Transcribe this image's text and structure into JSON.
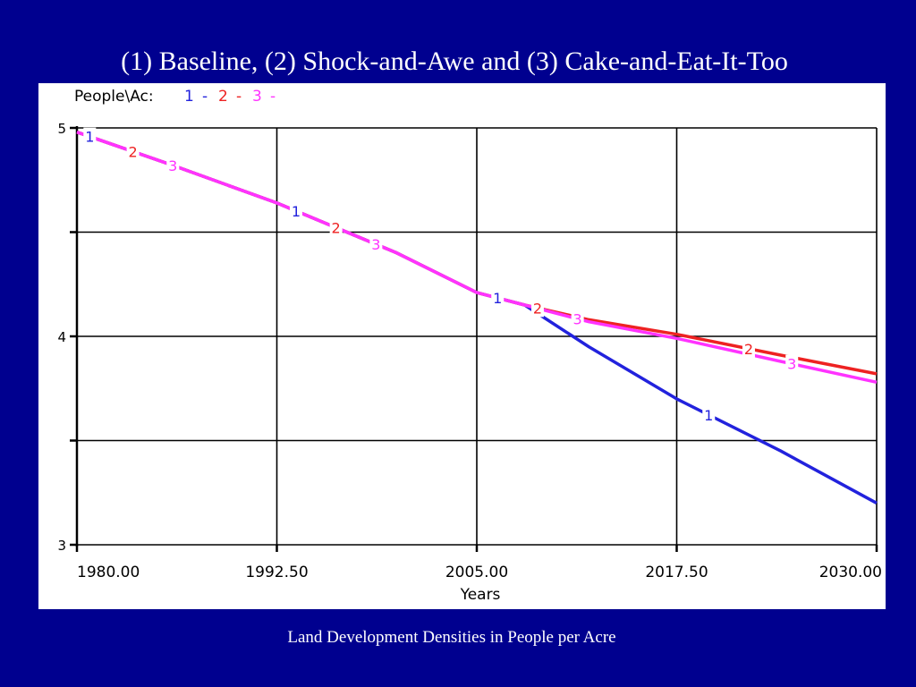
{
  "slide": {
    "title": "(1) Baseline, (2) Shock-and-Awe and (3) Cake-and-Eat-It-Too",
    "caption": "Land Development Densities in People per Acre"
  },
  "chart_data": {
    "type": "line",
    "ylabel": "People\\Ac:",
    "xlabel": "Years",
    "xlim": [
      1980,
      2030
    ],
    "ylim": [
      3,
      5
    ],
    "x_ticks": [
      "1980.00",
      "1992.50",
      "2005.00",
      "2017.50",
      "2030.00"
    ],
    "y_ticks": [
      "5",
      "4",
      "3"
    ],
    "grid": true,
    "legend_position": "top-left",
    "series": [
      {
        "name": "1",
        "color": "#2222dd",
        "dash": "-",
        "x": [
          1980,
          1986,
          1992.5,
          2000,
          2005,
          2008,
          2012,
          2017.5,
          2024,
          2030
        ],
        "y": [
          4.98,
          4.82,
          4.64,
          4.4,
          4.21,
          4.15,
          3.95,
          3.7,
          3.45,
          3.2
        ]
      },
      {
        "name": "2",
        "color": "#ee2222",
        "dash": "-",
        "x": [
          1980,
          1986,
          1992.5,
          2000,
          2005,
          2008,
          2012,
          2017.5,
          2024,
          2030
        ],
        "y": [
          4.98,
          4.82,
          4.64,
          4.4,
          4.21,
          4.15,
          4.08,
          4.01,
          3.91,
          3.82
        ]
      },
      {
        "name": "3",
        "color": "#ff33ff",
        "dash": "-",
        "x": [
          1980,
          1986,
          1992.5,
          2000,
          2005,
          2008,
          2012,
          2017.5,
          2024,
          2030
        ],
        "y": [
          4.98,
          4.82,
          4.64,
          4.4,
          4.21,
          4.15,
          4.07,
          3.99,
          3.88,
          3.78
        ]
      }
    ],
    "line_labels": [
      {
        "series": "1",
        "x": [
          1980.8,
          1993.7,
          2006.3,
          2019.5
        ]
      },
      {
        "series": "2",
        "x": [
          1983.5,
          1996.2,
          2008.8,
          2022.0
        ]
      },
      {
        "series": "3",
        "x": [
          1986.0,
          1998.7,
          2011.3,
          2024.7
        ]
      }
    ]
  }
}
